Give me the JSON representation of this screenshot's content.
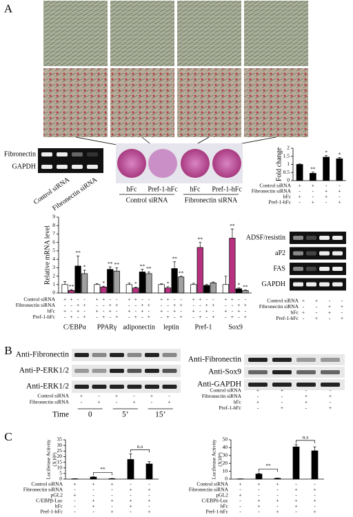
{
  "panel_a": {
    "label": "A",
    "gel": {
      "rows": [
        "Fibronectin",
        "GAPDH"
      ],
      "lanes": [
        "Control siRNA",
        "Fibronectin siRNA"
      ]
    },
    "dish": {
      "lanes": [
        "hFc",
        "Pref-1-hFc",
        "hFc",
        "Pref-1-hFc"
      ],
      "groups": [
        "Control siRNA",
        "Fibronectin siRNA"
      ]
    },
    "fold_change": {
      "type": "bar",
      "y_label": "Fold change",
      "ylim": [
        0,
        2
      ],
      "yticks": [
        0,
        0.5,
        1,
        1.5,
        2
      ],
      "color": "#000000",
      "values": [
        1.0,
        0.45,
        1.45,
        1.35
      ],
      "errors": [
        0.03,
        0.08,
        0.1,
        0.07
      ],
      "annotations": [
        null,
        "**",
        "*",
        "*"
      ],
      "conditions": [
        {
          "label": "Control siRNA",
          "signs": [
            "+",
            "+",
            "-",
            "-"
          ]
        },
        {
          "label": "Fibronectin siRNA",
          "signs": [
            "-",
            "-",
            "+",
            "+"
          ]
        },
        {
          "label": "hFc",
          "signs": [
            "+",
            "-",
            "+",
            "-"
          ]
        },
        {
          "label": "Pref-1-hFc",
          "signs": [
            "-",
            "+",
            "-",
            "+"
          ]
        }
      ]
    },
    "mrna": {
      "type": "grouped_bar",
      "y_label": "Relative mRNA level",
      "ylim": [
        0,
        9
      ],
      "yticks": [
        0,
        1,
        2,
        3,
        4,
        5,
        6,
        7,
        8,
        9
      ],
      "categories": [
        "C/EBPα",
        "PPARγ",
        "adiponectin",
        "leptin",
        "Pref-1",
        "Sox9"
      ],
      "series": [
        {
          "color": "#ffffff",
          "values": [
            1.0,
            1.0,
            1.0,
            1.0,
            1.0,
            1.0
          ],
          "errors": [
            0.35,
            0.1,
            0.2,
            0.1,
            0.15,
            1.0
          ],
          "annotations": [
            null,
            null,
            null,
            null,
            null,
            null
          ]
        },
        {
          "color": "#b5307e",
          "values": [
            0.3,
            0.7,
            0.6,
            0.6,
            5.4,
            6.5
          ],
          "errors": [
            0.1,
            0.1,
            0.1,
            0.15,
            0.6,
            1.1
          ],
          "annotations": [
            "**",
            "*",
            "*",
            "*",
            "**",
            "**"
          ]
        },
        {
          "color": "#000000",
          "values": [
            3.2,
            2.8,
            2.5,
            2.9,
            0.9,
            0.5
          ],
          "errors": [
            1.2,
            0.3,
            0.3,
            0.8,
            0.1,
            0.1
          ],
          "annotations": [
            "**",
            "**",
            "**",
            "**",
            null,
            "*"
          ]
        },
        {
          "color": "#a0a0a0",
          "values": [
            2.3,
            2.6,
            2.3,
            1.9,
            1.2,
            0.3
          ],
          "errors": [
            0.4,
            0.4,
            0.2,
            0.1,
            0.1,
            0.05
          ],
          "annotations": [
            "*",
            "**",
            "**",
            "**",
            null,
            "**"
          ]
        }
      ],
      "conditions": [
        {
          "label": "Control siRNA",
          "signs": [
            "+",
            "+",
            "-",
            "-"
          ]
        },
        {
          "label": "Fibronectin siRNA",
          "signs": [
            "-",
            "-",
            "+",
            "+"
          ]
        },
        {
          "label": "hFc",
          "signs": [
            "+",
            "-",
            "+",
            "-"
          ]
        },
        {
          "label": "Pref-1-hFc",
          "signs": [
            "-",
            "+",
            "-",
            "+"
          ]
        }
      ]
    },
    "gel_right": {
      "rows": [
        "ADSF/resistin",
        "aP2",
        "FAS",
        "GAPDH"
      ],
      "conditions": [
        {
          "label": "Control siRNA",
          "signs": [
            "+",
            "+",
            "-",
            "-"
          ]
        },
        {
          "label": "Fibronectin siRNA",
          "signs": [
            "-",
            "-",
            "+",
            "+"
          ]
        },
        {
          "label": "hFc",
          "signs": [
            "+",
            "-",
            "+",
            "-"
          ]
        },
        {
          "label": "Pref-1-hFc",
          "signs": [
            "-",
            "+",
            "-",
            "+"
          ]
        }
      ]
    }
  },
  "panel_b": {
    "label": "B",
    "left": {
      "rows": [
        "Anti-Fibronectin",
        "Anti-P-ERK1/2",
        "Anti-ERK1/2"
      ],
      "conditions": [
        {
          "label": "Control siRNA",
          "signs": [
            "+",
            "-",
            "+",
            "-",
            "+",
            "-"
          ]
        },
        {
          "label": "Fibronectin siRNA",
          "signs": [
            "-",
            "+",
            "-",
            "+",
            "-",
            "+"
          ]
        }
      ],
      "time_label": "Time",
      "times": [
        "0",
        "5’",
        "15’"
      ]
    },
    "right": {
      "rows": [
        "Anti-Fibronectin",
        "Anti-Sox9",
        "Anti-GAPDH"
      ],
      "conditions": [
        {
          "label": "Control siRNA",
          "signs": [
            "+",
            "+",
            "-",
            "-"
          ]
        },
        {
          "label": "Fibronectin siRNA",
          "signs": [
            "-",
            "-",
            "+",
            "+"
          ]
        },
        {
          "label": "hFc",
          "signs": [
            "+",
            "-",
            "+",
            "-"
          ]
        },
        {
          "label": "Pref-1-hFc",
          "signs": [
            "-",
            "+",
            "-",
            "+"
          ]
        }
      ]
    }
  },
  "panel_c": {
    "label": "C",
    "charts": [
      {
        "type": "bar",
        "y_label": "Luciferase Activity",
        "y_unit": "(X10³)",
        "ylim": [
          0,
          35
        ],
        "yticks": [
          0,
          5,
          10,
          15,
          20,
          25,
          30,
          35
        ],
        "color": "#000000",
        "values": [
          0.3,
          1.8,
          0.4,
          17.5,
          13.5
        ],
        "errors": [
          0.1,
          0.4,
          0.2,
          5.0,
          2.0
        ],
        "comparisons": [
          "**",
          "n.s"
        ],
        "conditions": [
          {
            "label": "Control siRNA",
            "signs": [
              "+",
              "+",
              "+",
              "-",
              "-"
            ]
          },
          {
            "label": "Fibronectin siRNA",
            "signs": [
              "-",
              "-",
              "-",
              "+",
              "+"
            ]
          },
          {
            "label": "pGL2",
            "signs": [
              "+",
              "-",
              "-",
              "-",
              "-"
            ]
          },
          {
            "label": "C/EBPβ-Luc",
            "signs": [
              "-",
              "+",
              "+",
              "+",
              "+"
            ]
          },
          {
            "label": "hFc",
            "signs": [
              "-",
              "+",
              "-",
              "+",
              "-"
            ]
          },
          {
            "label": "Pref-1-hFc",
            "signs": [
              "-",
              "-",
              "+",
              "-",
              "+"
            ]
          }
        ]
      },
      {
        "type": "bar",
        "y_label": "Luciferase Activity",
        "y_unit": "(X10⁴)",
        "ylim": [
          0,
          50
        ],
        "yticks": [
          0,
          10,
          20,
          30,
          40,
          50
        ],
        "color": "#000000",
        "values": [
          0.3,
          6.5,
          1.0,
          41,
          36
        ],
        "errors": [
          0.1,
          1.0,
          0.3,
          3.0,
          5.0
        ],
        "comparisons": [
          "**",
          "n.s"
        ],
        "conditions": [
          {
            "label": "Control siRNA",
            "signs": [
              "+",
              "+",
              "+",
              "-",
              "-"
            ]
          },
          {
            "label": "Fibronectin siRNA",
            "signs": [
              "-",
              "-",
              "-",
              "+",
              "+"
            ]
          },
          {
            "label": "pGL2",
            "signs": [
              "+",
              "-",
              "-",
              "-",
              "-"
            ]
          },
          {
            "label": "C/EBPδ-Luc",
            "signs": [
              "-",
              "+",
              "+",
              "+",
              "+"
            ]
          },
          {
            "label": "hFc",
            "signs": [
              "-",
              "+",
              "-",
              "+",
              "-"
            ]
          },
          {
            "label": "Pref-1-hFc",
            "signs": [
              "-",
              "-",
              "+",
              "-",
              "+"
            ]
          }
        ]
      }
    ]
  }
}
